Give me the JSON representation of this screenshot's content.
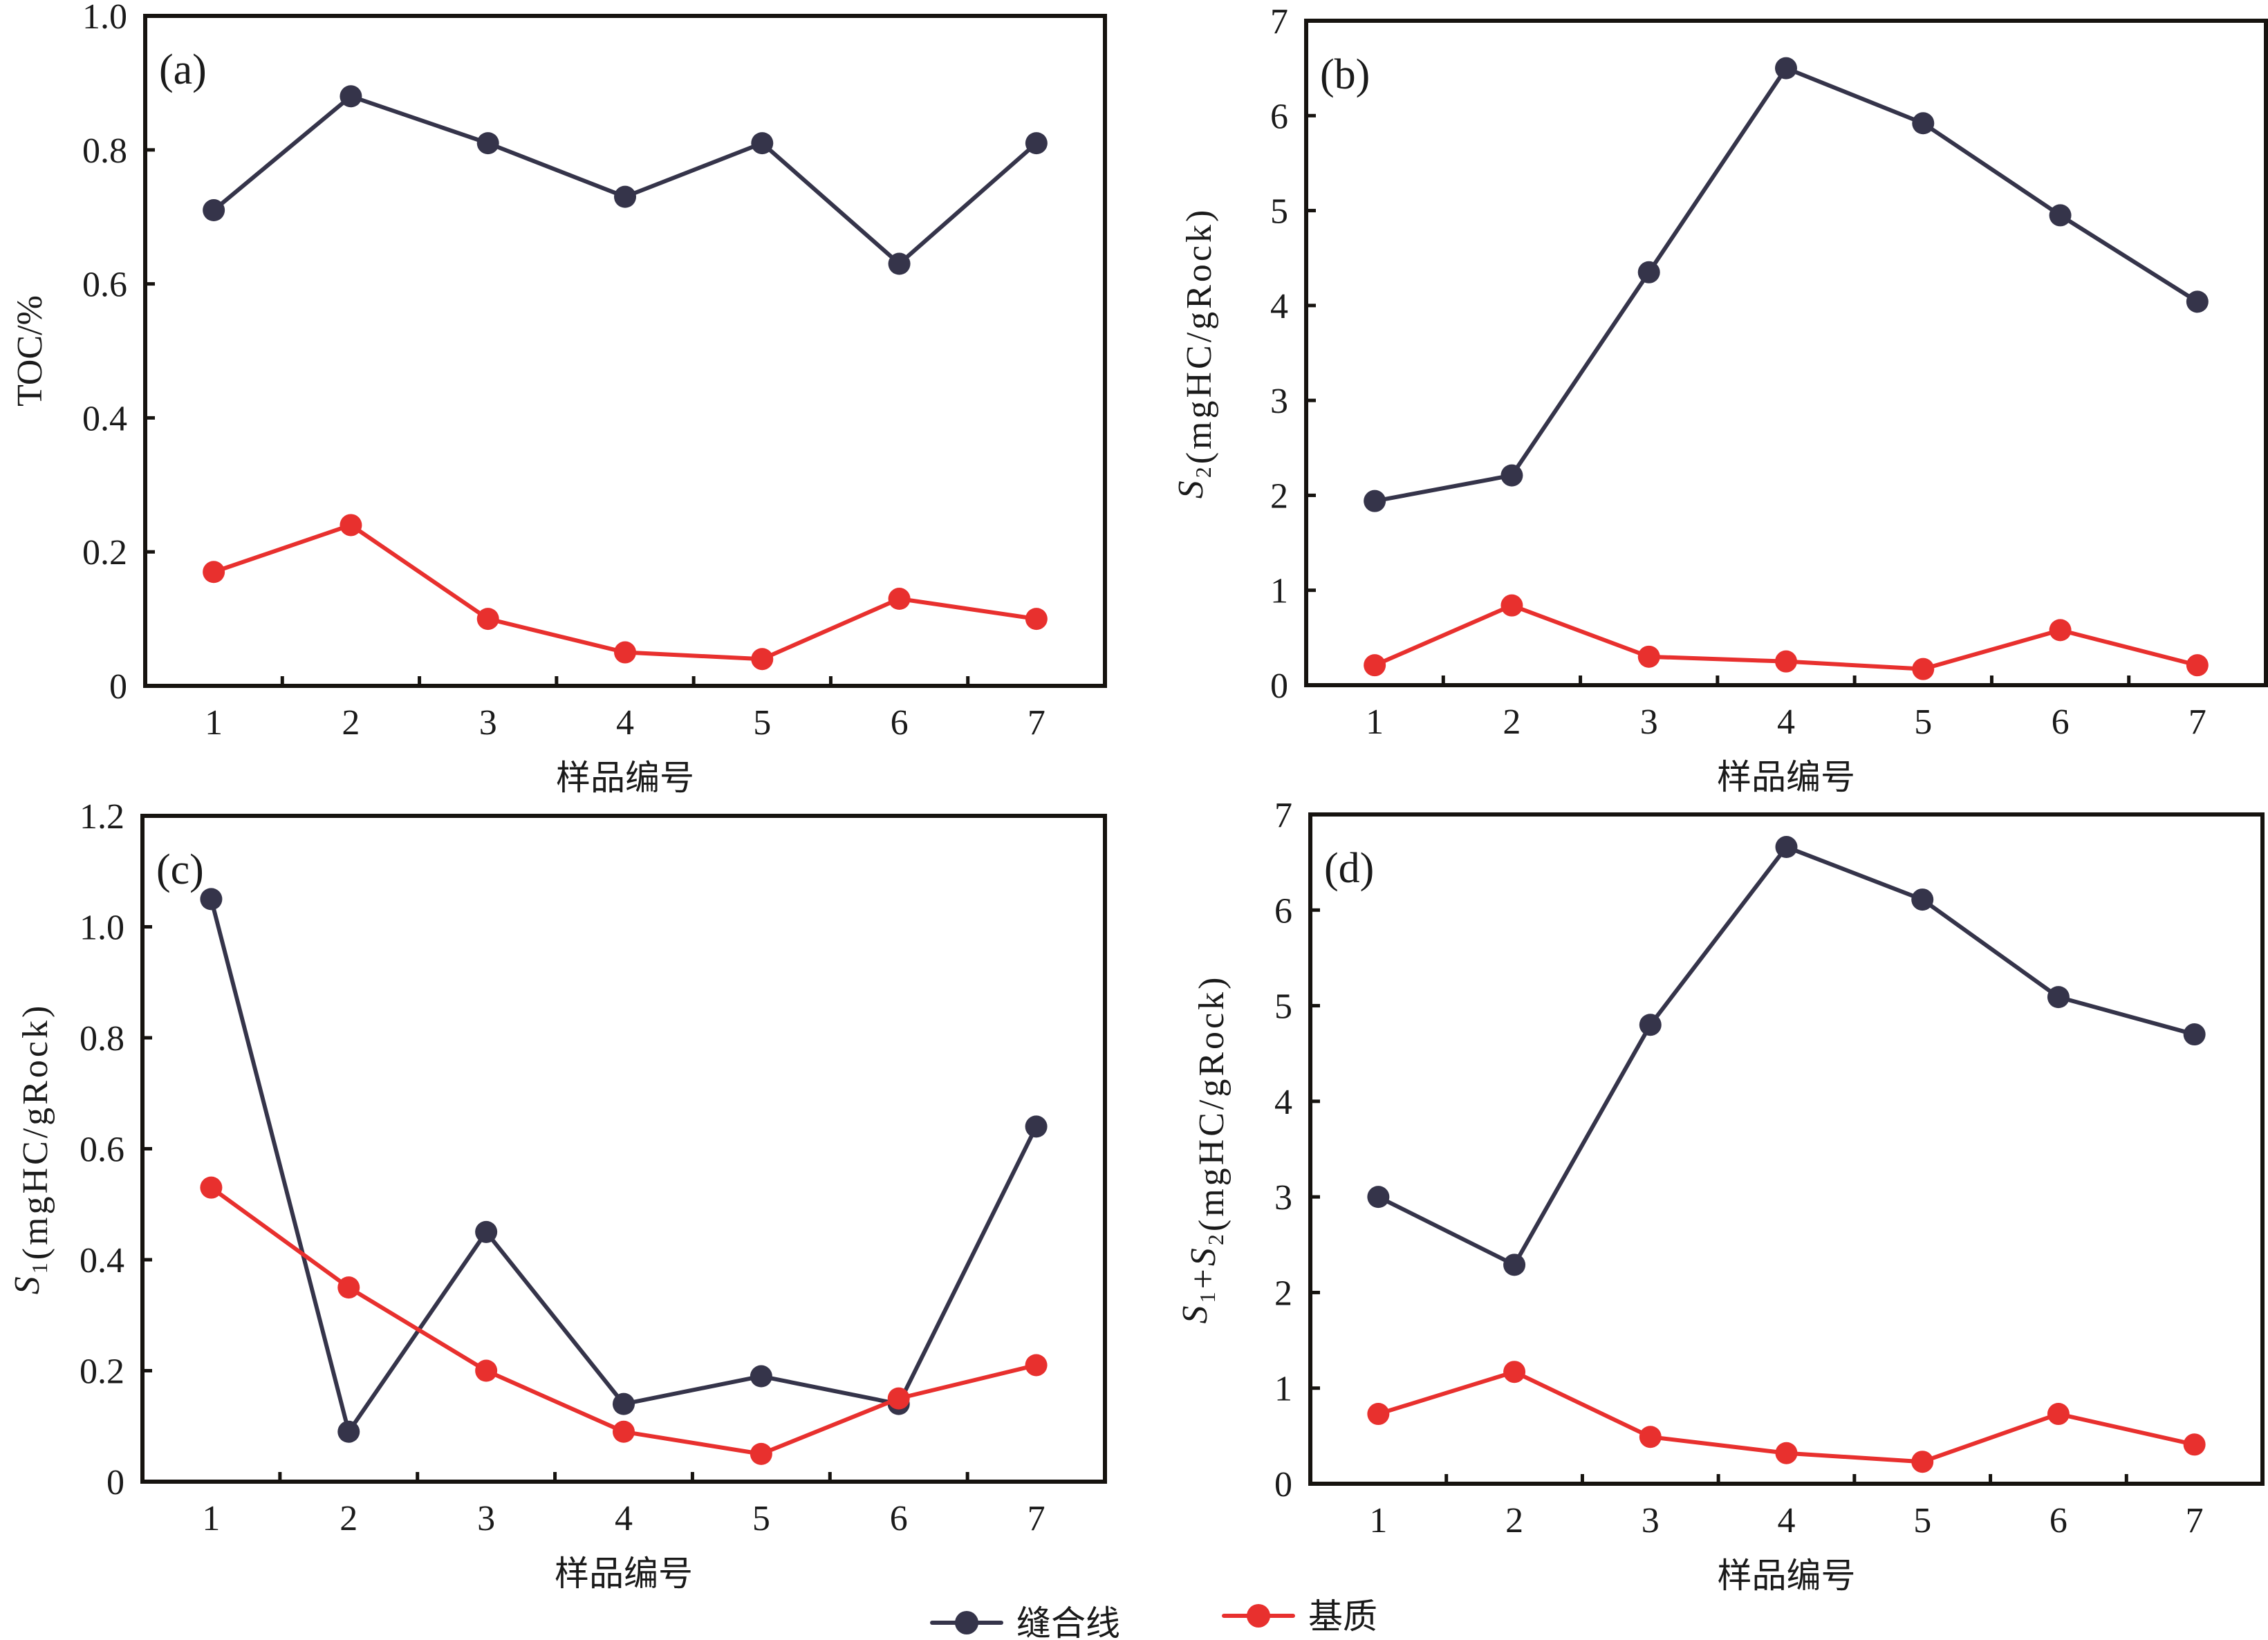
{
  "chart_data": [
    {
      "type": "line",
      "panel": "(a)",
      "title": "",
      "xlabel": "样品编号",
      "ylabel": "TOC/%",
      "ylabel_parts": [
        {
          "text": "TOC/%",
          "italic": false
        }
      ],
      "categories": [
        "1",
        "2",
        "3",
        "4",
        "5",
        "6",
        "7"
      ],
      "ylim": [
        0,
        1.0
      ],
      "yticks": [
        0,
        0.2,
        0.4,
        0.6,
        0.8,
        1.0
      ],
      "ytick_labels": [
        "0",
        "0.2",
        "0.4",
        "0.6",
        "0.8",
        "1.0"
      ],
      "grid": false,
      "series": [
        {
          "name": "缝合线",
          "color": "#35344a",
          "values": [
            0.71,
            0.88,
            0.81,
            0.73,
            0.81,
            0.63,
            0.81
          ]
        },
        {
          "name": "基质",
          "color": "#e8302e",
          "values": [
            0.17,
            0.24,
            0.1,
            0.05,
            0.04,
            0.13,
            0.1
          ]
        }
      ]
    },
    {
      "type": "line",
      "panel": "(b)",
      "title": "",
      "xlabel": "样品编号",
      "ylabel": "S2(mgHC/gRock)",
      "ylabel_parts": [
        {
          "text": "S",
          "italic": true
        },
        {
          "text": "2",
          "sub": true
        },
        {
          "text": "(mgHC/gRock)",
          "italic": false
        }
      ],
      "categories": [
        "1",
        "2",
        "3",
        "4",
        "5",
        "6",
        "7"
      ],
      "ylim": [
        0,
        7
      ],
      "yticks": [
        0,
        1,
        2,
        3,
        4,
        5,
        6,
        7
      ],
      "ytick_labels": [
        "0",
        "1",
        "2",
        "3",
        "4",
        "5",
        "6",
        "7"
      ],
      "grid": false,
      "series": [
        {
          "name": "缝合线",
          "color": "#35344a",
          "values": [
            1.94,
            2.21,
            4.35,
            6.5,
            5.92,
            4.95,
            4.04
          ]
        },
        {
          "name": "基质",
          "color": "#e8302e",
          "values": [
            0.21,
            0.84,
            0.3,
            0.25,
            0.17,
            0.58,
            0.21
          ]
        }
      ]
    },
    {
      "type": "line",
      "panel": "(c)",
      "title": "",
      "xlabel": "样品编号",
      "ylabel": "S1(mgHC/gRock)",
      "ylabel_parts": [
        {
          "text": "S",
          "italic": true
        },
        {
          "text": "1",
          "sub": true
        },
        {
          "text": "(mgHC/gRock)",
          "italic": false
        }
      ],
      "categories": [
        "1",
        "2",
        "3",
        "4",
        "5",
        "6",
        "7"
      ],
      "ylim": [
        0,
        1.2
      ],
      "yticks": [
        0,
        0.2,
        0.4,
        0.6,
        0.8,
        1.0,
        1.2
      ],
      "ytick_labels": [
        "0",
        "0.2",
        "0.4",
        "0.6",
        "0.8",
        "1.0",
        "1.2"
      ],
      "grid": false,
      "series": [
        {
          "name": "缝合线",
          "color": "#35344a",
          "values": [
            1.05,
            0.09,
            0.45,
            0.14,
            0.19,
            0.14,
            0.64
          ]
        },
        {
          "name": "基质",
          "color": "#e8302e",
          "values": [
            0.53,
            0.35,
            0.2,
            0.09,
            0.05,
            0.15,
            0.21
          ]
        }
      ]
    },
    {
      "type": "line",
      "panel": "(d)",
      "title": "",
      "xlabel": "样品编号",
      "ylabel": "S1+S2(mgHC/gRock)",
      "ylabel_parts": [
        {
          "text": "S",
          "italic": true
        },
        {
          "text": "1",
          "sub": true
        },
        {
          "text": "+",
          "italic": false
        },
        {
          "text": "S",
          "italic": true
        },
        {
          "text": "2",
          "sub": true
        },
        {
          "text": "(mgHC/gRock)",
          "italic": false
        }
      ],
      "categories": [
        "1",
        "2",
        "3",
        "4",
        "5",
        "6",
        "7"
      ],
      "ylim": [
        0,
        7
      ],
      "yticks": [
        0,
        1,
        2,
        3,
        4,
        5,
        6,
        7
      ],
      "ytick_labels": [
        "0",
        "1",
        "2",
        "3",
        "4",
        "5",
        "6",
        "7"
      ],
      "grid": false,
      "series": [
        {
          "name": "缝合线",
          "color": "#35344a",
          "values": [
            3.0,
            2.29,
            4.8,
            6.66,
            6.11,
            5.09,
            4.7
          ]
        },
        {
          "name": "基质",
          "color": "#e8302e",
          "values": [
            0.73,
            1.17,
            0.49,
            0.32,
            0.23,
            0.73,
            0.41
          ]
        }
      ]
    }
  ],
  "legend": {
    "placement": "bottom-center",
    "items": [
      {
        "label": "缝合线",
        "color": "#35344a",
        "marker": "filled-circle"
      },
      {
        "label": "基质",
        "color": "#e8302e",
        "marker": "filled-circle"
      }
    ]
  }
}
